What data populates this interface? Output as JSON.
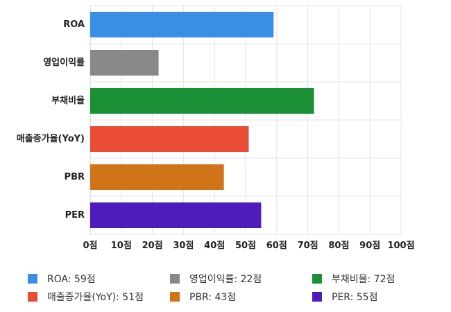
{
  "chart_data": {
    "type": "bar",
    "orientation": "horizontal",
    "categories": [
      "ROA",
      "영업이익률",
      "부채비율",
      "매출증가율(YoY)",
      "PBR",
      "PER"
    ],
    "values": [
      59,
      22,
      72,
      51,
      43,
      55
    ],
    "colors": [
      "#3a8ee6",
      "#888888",
      "#1a8f35",
      "#ea4d35",
      "#cf7418",
      "#4e1cbd"
    ],
    "xlim": [
      0,
      100
    ],
    "xticks": [
      0,
      10,
      20,
      30,
      40,
      50,
      60,
      70,
      80,
      90,
      100
    ],
    "tick_suffix": "점",
    "grid": true,
    "title": "",
    "xlabel": "",
    "ylabel": "",
    "legend_position": "bottom",
    "legend": [
      {
        "label": "ROA: 59점",
        "color": "#3a8ee6"
      },
      {
        "label": "영업이익률: 22점",
        "color": "#888888"
      },
      {
        "label": "부채비율: 72점",
        "color": "#1a8f35"
      },
      {
        "label": "매출증가율(YoY): 51점",
        "color": "#ea4d35"
      },
      {
        "label": "PBR: 43점",
        "color": "#cf7418"
      },
      {
        "label": "PER: 55점",
        "color": "#4e1cbd"
      }
    ]
  }
}
